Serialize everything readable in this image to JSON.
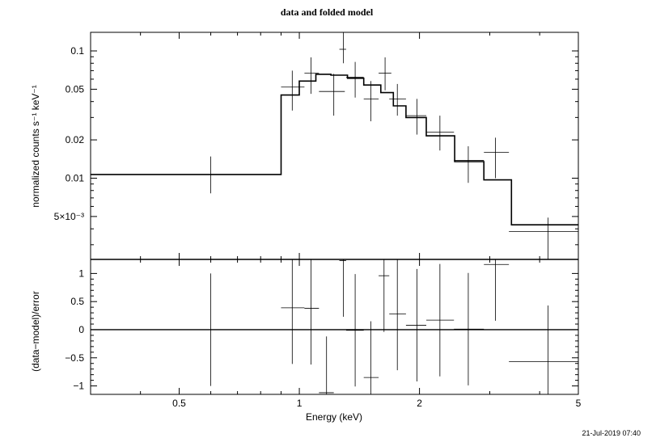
{
  "title": "data and folded model",
  "timestamp": "21-Jul-2019 07:40",
  "chart_data": [
    {
      "type": "line",
      "panel": "top",
      "ylabel": "normalized counts s⁻¹ keV⁻¹",
      "xlim": [
        0.3,
        5
      ],
      "ylim": [
        0.0023,
        0.14
      ],
      "log_x": true,
      "log_y": true,
      "y_ticks": [
        {
          "value": 0.1,
          "label": "0.1"
        },
        {
          "value": 0.05,
          "label": "0.05"
        },
        {
          "value": 0.02,
          "label": "0.02"
        },
        {
          "value": 0.01,
          "label": "0.01"
        },
        {
          "value": 0.005,
          "label": "5×10⁻³"
        }
      ],
      "series": [
        {
          "kind": "data",
          "points": [
            {
              "xlo": 0.3,
              "xhi": 0.9,
              "x": 0.6,
              "y": 0.0107,
              "ylo": 0.0076,
              "yhi": 0.0148
            },
            {
              "xlo": 0.9,
              "xhi": 1.03,
              "x": 0.96,
              "y": 0.052,
              "ylo": 0.034,
              "yhi": 0.07
            },
            {
              "xlo": 1.03,
              "xhi": 1.12,
              "x": 1.07,
              "y": 0.067,
              "ylo": 0.046,
              "yhi": 0.089
            },
            {
              "xlo": 1.12,
              "xhi": 1.3,
              "x": 1.22,
              "y": 0.048,
              "ylo": 0.031,
              "yhi": 0.066
            },
            {
              "xlo": 1.26,
              "xhi": 1.31,
              "x": 1.29,
              "y": 0.103,
              "ylo": 0.08,
              "yhi": 0.14
            },
            {
              "xlo": 1.31,
              "xhi": 1.45,
              "x": 1.38,
              "y": 0.062,
              "ylo": 0.043,
              "yhi": 0.082
            },
            {
              "xlo": 1.45,
              "xhi": 1.58,
              "x": 1.51,
              "y": 0.042,
              "ylo": 0.028,
              "yhi": 0.058
            },
            {
              "xlo": 1.58,
              "xhi": 1.7,
              "x": 1.64,
              "y": 0.067,
              "ylo": 0.049,
              "yhi": 0.089
            },
            {
              "xlo": 1.68,
              "xhi": 1.85,
              "x": 1.76,
              "y": 0.042,
              "ylo": 0.031,
              "yhi": 0.055
            },
            {
              "xlo": 1.85,
              "xhi": 2.08,
              "x": 1.97,
              "y": 0.031,
              "ylo": 0.022,
              "yhi": 0.042
            },
            {
              "xlo": 2.08,
              "xhi": 2.44,
              "x": 2.25,
              "y": 0.023,
              "ylo": 0.0165,
              "yhi": 0.031
            },
            {
              "xlo": 2.44,
              "xhi": 2.9,
              "x": 2.65,
              "y": 0.0138,
              "ylo": 0.0092,
              "yhi": 0.0178
            },
            {
              "xlo": 2.9,
              "xhi": 3.35,
              "x": 3.1,
              "y": 0.016,
              "ylo": 0.01,
              "yhi": 0.0208
            },
            {
              "xlo": 3.35,
              "xhi": 5,
              "x": 4.2,
              "y": 0.0038,
              "ylo": 0.0023,
              "yhi": 0.0049
            }
          ]
        },
        {
          "kind": "model",
          "steps": [
            {
              "xlo": 0.3,
              "xhi": 0.9,
              "y": 0.0107
            },
            {
              "xlo": 0.9,
              "xhi": 1.0,
              "y": 0.045
            },
            {
              "xlo": 1.0,
              "xhi": 1.1,
              "y": 0.058
            },
            {
              "xlo": 1.1,
              "xhi": 1.2,
              "y": 0.0655
            },
            {
              "xlo": 1.2,
              "xhi": 1.32,
              "y": 0.0645
            },
            {
              "xlo": 1.32,
              "xhi": 1.45,
              "y": 0.061
            },
            {
              "xlo": 1.45,
              "xhi": 1.6,
              "y": 0.054
            },
            {
              "xlo": 1.6,
              "xhi": 1.72,
              "y": 0.047
            },
            {
              "xlo": 1.72,
              "xhi": 1.85,
              "y": 0.037
            },
            {
              "xlo": 1.85,
              "xhi": 2.08,
              "y": 0.03
            },
            {
              "xlo": 2.08,
              "xhi": 2.45,
              "y": 0.0215
            },
            {
              "xlo": 2.45,
              "xhi": 2.9,
              "y": 0.0135
            },
            {
              "xlo": 2.9,
              "xhi": 3.4,
              "y": 0.0097
            },
            {
              "xlo": 3.4,
              "xhi": 5,
              "y": 0.0043
            }
          ]
        }
      ]
    },
    {
      "type": "scatter",
      "panel": "bottom",
      "xlabel": "Energy (keV)",
      "ylabel": "(data−model)/error",
      "xlim": [
        0.3,
        5
      ],
      "ylim": [
        -1.15,
        1.25
      ],
      "log_x": true,
      "x_ticks": [
        {
          "value": 0.5,
          "label": "0.5"
        },
        {
          "value": 1,
          "label": "1"
        },
        {
          "value": 2,
          "label": "2"
        },
        {
          "value": 5,
          "label": "5"
        }
      ],
      "y_ticks": [
        {
          "value": 1,
          "label": "1"
        },
        {
          "value": 0.5,
          "label": "0.5"
        },
        {
          "value": 0,
          "label": "0"
        },
        {
          "value": -0.5,
          "label": "−0.5"
        },
        {
          "value": -1,
          "label": "−1"
        }
      ],
      "zero_line": 0,
      "points": [
        {
          "xlo": 0.3,
          "xhi": 0.9,
          "x": 0.6,
          "y": 0.0,
          "ylo": -1.0,
          "yhi": 1.0
        },
        {
          "xlo": 0.9,
          "xhi": 1.03,
          "x": 0.96,
          "y": 0.39,
          "ylo": -0.61,
          "yhi": 1.25
        },
        {
          "xlo": 1.03,
          "xhi": 1.12,
          "x": 1.07,
          "y": 0.38,
          "ylo": -0.62,
          "yhi": 1.25
        },
        {
          "xlo": 1.12,
          "xhi": 1.22,
          "x": 1.17,
          "y": -1.12,
          "ylo": -1.15,
          "yhi": -0.12
        },
        {
          "xlo": 1.26,
          "xhi": 1.31,
          "x": 1.29,
          "y": 1.23,
          "ylo": 0.23,
          "yhi": 1.25
        },
        {
          "xlo": 1.31,
          "xhi": 1.45,
          "x": 1.38,
          "y": -0.01,
          "ylo": -1.01,
          "yhi": 0.99
        },
        {
          "xlo": 1.45,
          "xhi": 1.58,
          "x": 1.51,
          "y": -0.85,
          "ylo": -1.15,
          "yhi": 0.15
        },
        {
          "xlo": 1.58,
          "xhi": 1.68,
          "x": 1.63,
          "y": 0.96,
          "ylo": -0.04,
          "yhi": 1.25
        },
        {
          "xlo": 1.68,
          "xhi": 1.85,
          "x": 1.76,
          "y": 0.28,
          "ylo": -0.72,
          "yhi": 1.25
        },
        {
          "xlo": 1.85,
          "xhi": 2.08,
          "x": 1.97,
          "y": 0.08,
          "ylo": -0.92,
          "yhi": 1.08
        },
        {
          "xlo": 2.08,
          "xhi": 2.44,
          "x": 2.25,
          "y": 0.17,
          "ylo": -0.83,
          "yhi": 1.17
        },
        {
          "xlo": 2.44,
          "xhi": 2.9,
          "x": 2.65,
          "y": 0.01,
          "ylo": -0.99,
          "yhi": 1.01
        },
        {
          "xlo": 2.9,
          "xhi": 3.35,
          "x": 3.1,
          "y": 1.16,
          "ylo": 0.16,
          "yhi": 1.25
        },
        {
          "xlo": 3.35,
          "xhi": 5,
          "x": 4.2,
          "y": -0.57,
          "ylo": -1.15,
          "yhi": 0.43
        }
      ]
    }
  ]
}
